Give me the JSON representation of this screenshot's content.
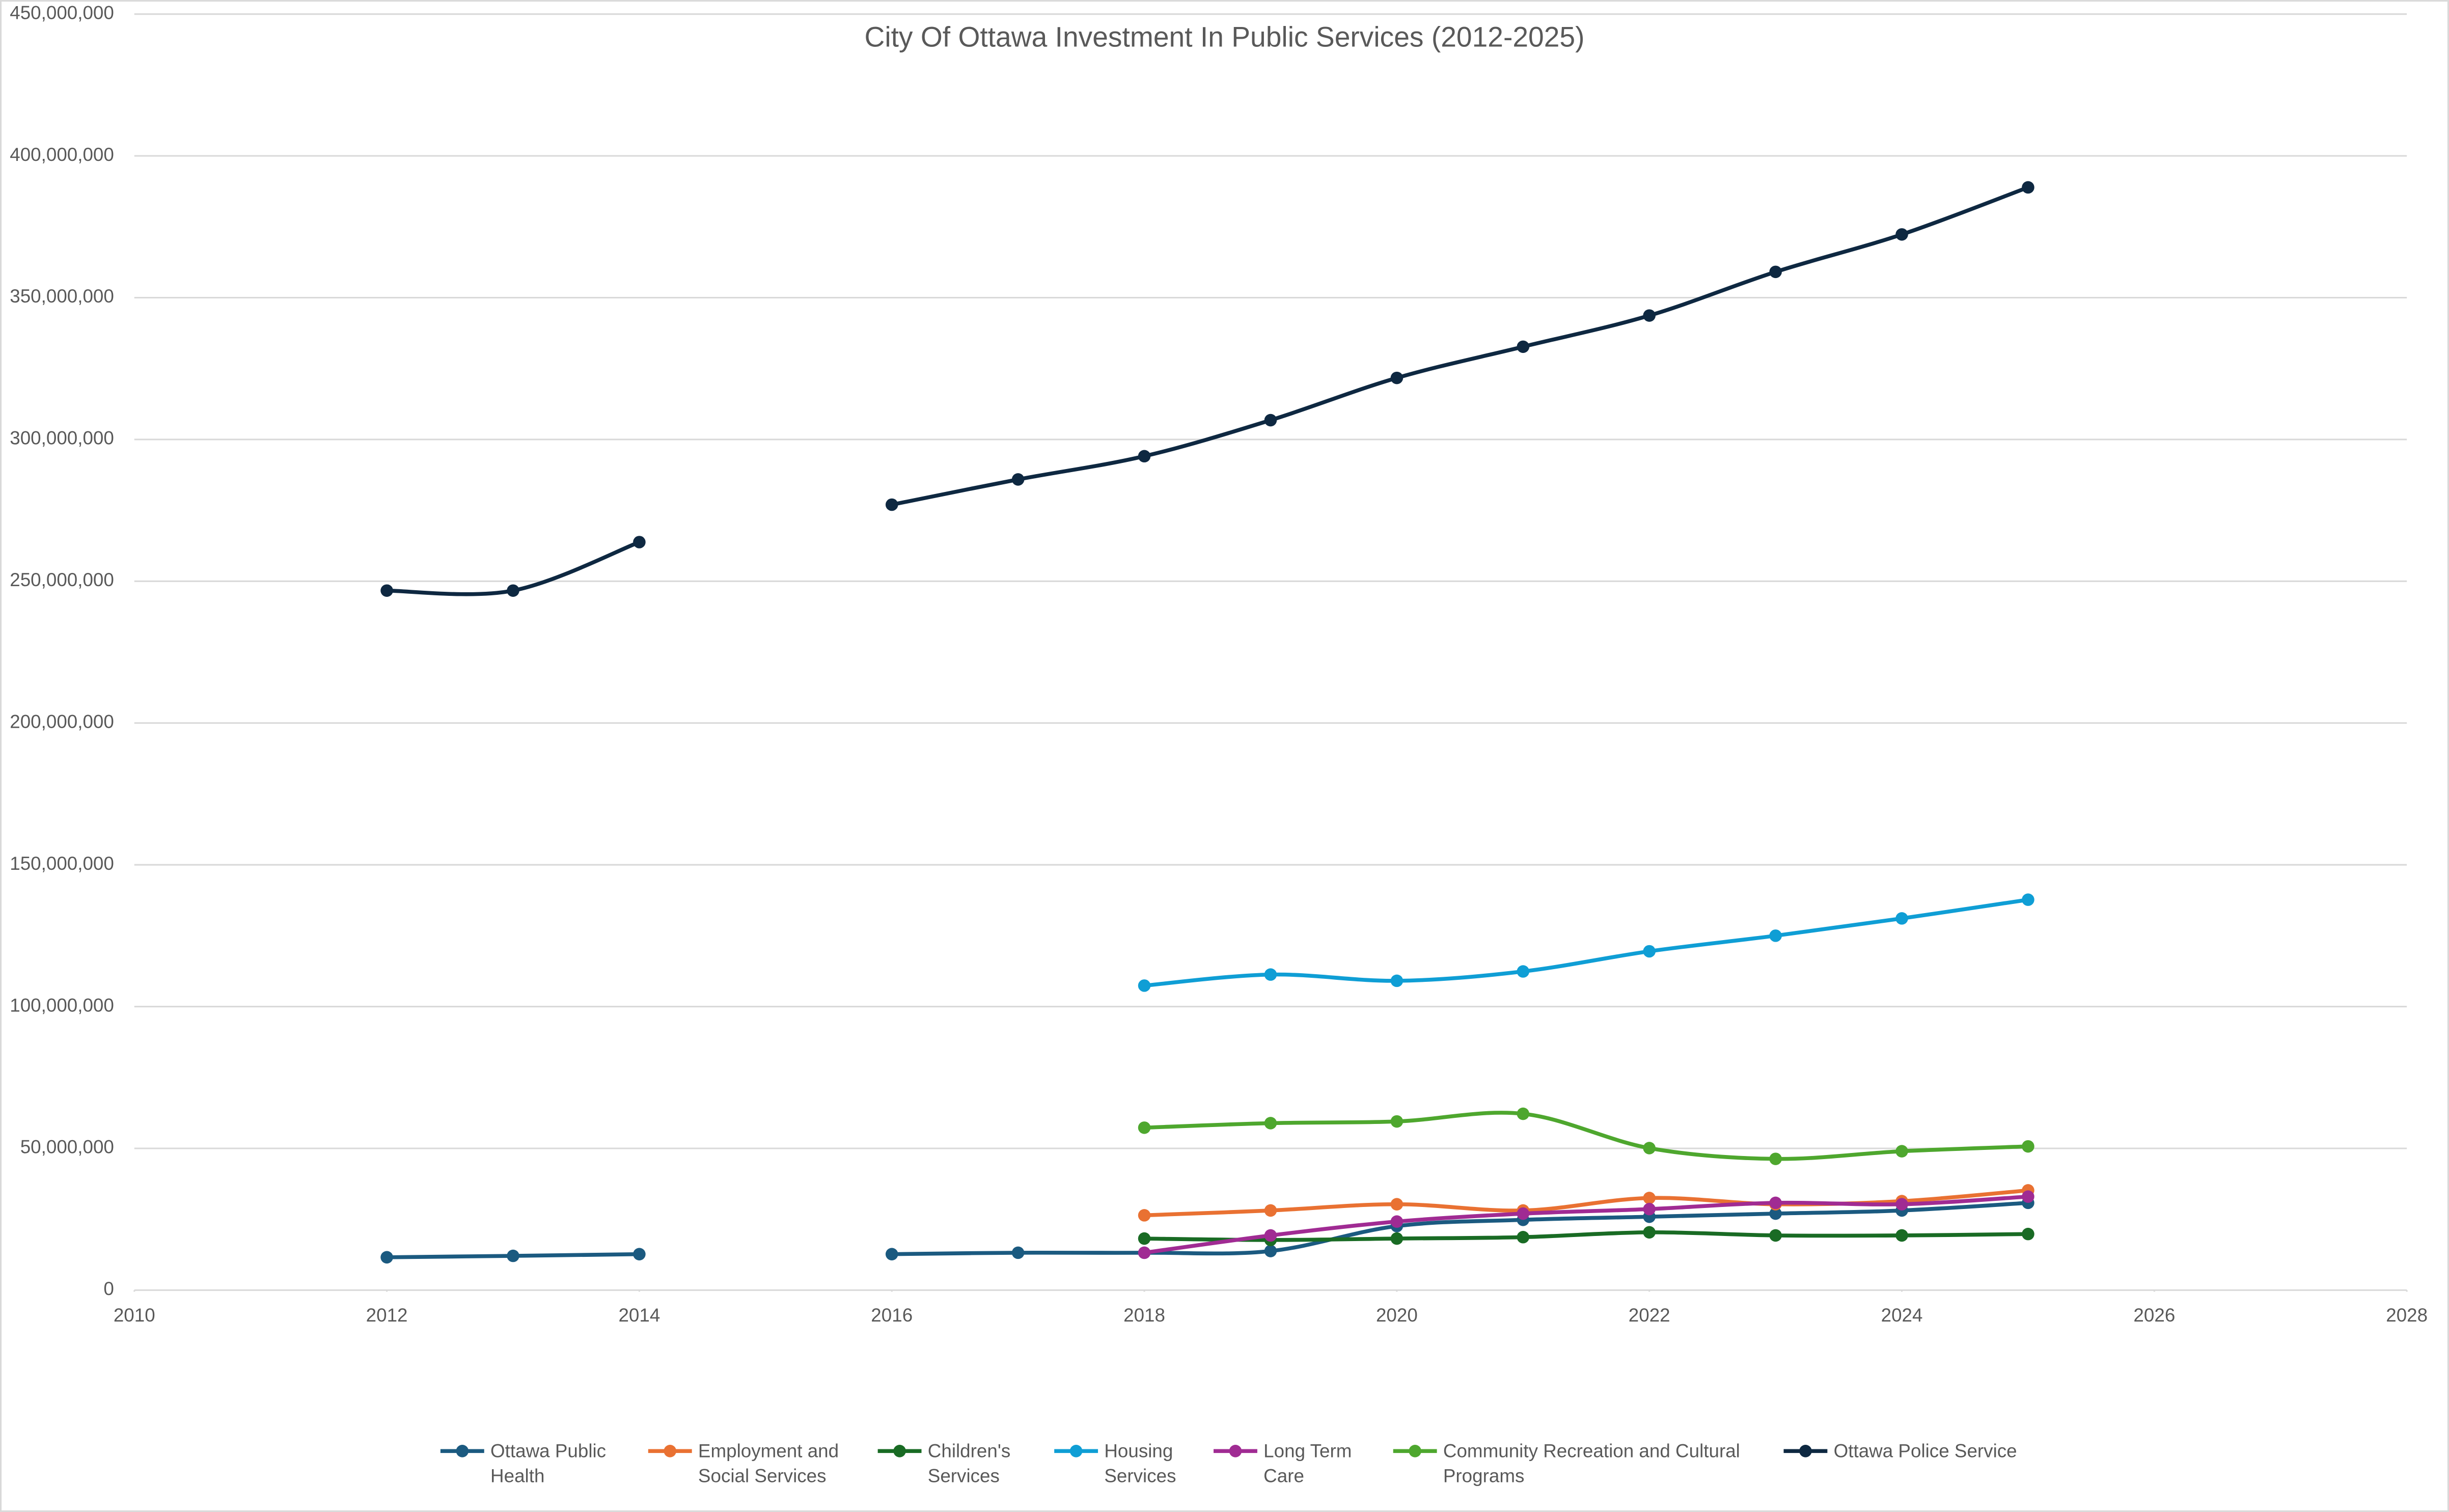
{
  "chart_data": {
    "type": "line",
    "title": "City Of Ottawa Investment In Public Services (2012-2025)",
    "x": [
      2012,
      2013,
      2014,
      2015,
      2016,
      2017,
      2018,
      2019,
      2020,
      2021,
      2022,
      2023,
      2024,
      2025
    ],
    "series": [
      {
        "name": "Ottawa Public Health",
        "color": "#1b5a80",
        "values": [
          11600000,
          12100000,
          12700000,
          null,
          12700000,
          13200000,
          13200000,
          13800000,
          22600000,
          24800000,
          25900000,
          27000000,
          28100000,
          30800000
        ]
      },
      {
        "name": "Employment and Social Services",
        "color": "#e97132",
        "values": [
          null,
          null,
          null,
          null,
          null,
          null,
          26400000,
          28100000,
          30300000,
          28100000,
          32500000,
          30300000,
          31400000,
          35200000
        ]
      },
      {
        "name": "Children's Services",
        "color": "#196b24",
        "values": [
          null,
          null,
          null,
          null,
          null,
          null,
          18200000,
          17700000,
          18200000,
          18700000,
          20400000,
          19300000,
          19300000,
          19800000
        ]
      },
      {
        "name": "Housing Services",
        "color": "#0f9ed5",
        "values": [
          null,
          null,
          null,
          null,
          null,
          null,
          107400000,
          111300000,
          109100000,
          112400000,
          119500000,
          125000000,
          131100000,
          137700000
        ]
      },
      {
        "name": "Long Term Care",
        "color": "#a02b93",
        "values": [
          null,
          null,
          null,
          null,
          null,
          null,
          13200000,
          19300000,
          24200000,
          27000000,
          28600000,
          30800000,
          30300000,
          33000000
        ]
      },
      {
        "name": "Community Recreation and Cultural Programs",
        "color": "#4ea72e",
        "values": [
          null,
          null,
          null,
          null,
          null,
          null,
          57300000,
          58900000,
          59500000,
          62200000,
          50100000,
          46300000,
          49000000,
          50700000
        ]
      },
      {
        "name": "Ottawa Police Service",
        "color": "#0e2841",
        "values": [
          246700000,
          246700000,
          263800000,
          null,
          277000000,
          285900000,
          294100000,
          306800000,
          321700000,
          332700000,
          343700000,
          359100000,
          372300000,
          388900000
        ]
      }
    ],
    "xlim": [
      2010,
      2028
    ],
    "xticks": [
      2010,
      2012,
      2014,
      2016,
      2018,
      2020,
      2022,
      2024,
      2026,
      2028
    ],
    "ylim": [
      0,
      450000000
    ],
    "yticks": [
      0,
      {
        "value": 50000000,
        "label": "50,000,000"
      },
      {
        "value": 100000000,
        "label": "100,000,000"
      },
      {
        "value": 150000000,
        "label": "150,000,000"
      },
      {
        "value": 200000000,
        "label": "200,000,000"
      },
      {
        "value": 250000000,
        "label": "250,000,000"
      },
      {
        "value": 300000000,
        "label": "300,000,000"
      },
      {
        "value": 350000000,
        "label": "350,000,000"
      },
      {
        "value": 400000000,
        "label": "400,000,000"
      },
      {
        "value": 450000000,
        "label": "450,000,000"
      }
    ],
    "grid": true,
    "legend": "bottom",
    "smooth": true
  }
}
